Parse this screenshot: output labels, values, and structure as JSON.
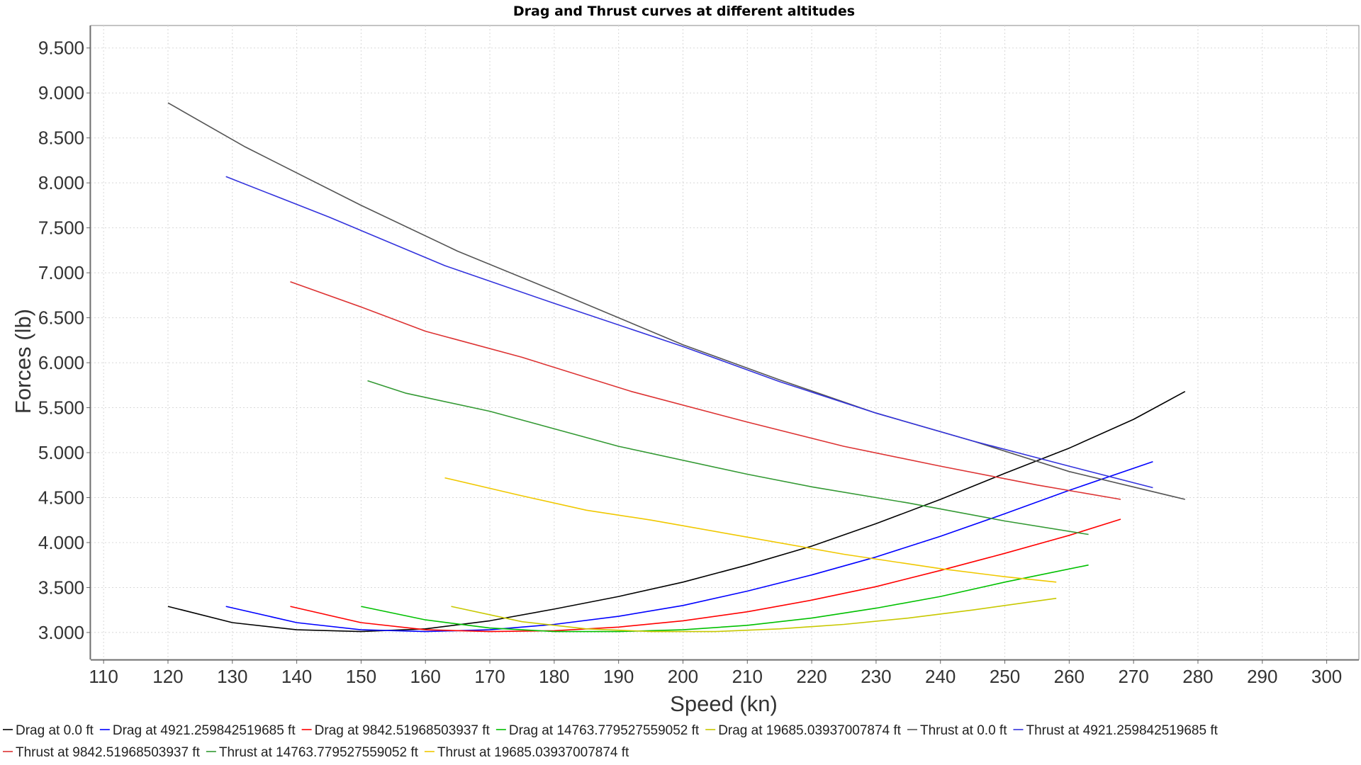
{
  "chart_data": {
    "type": "line",
    "title": "Drag and Thrust curves at different altitudes",
    "xlabel": "Speed (kn)",
    "ylabel": "Forces (lb)",
    "xlim": [
      108,
      305
    ],
    "ylim": [
      2700,
      9750
    ],
    "xticks": [
      110,
      120,
      130,
      140,
      150,
      160,
      170,
      180,
      190,
      200,
      210,
      220,
      230,
      240,
      250,
      260,
      270,
      280,
      290,
      300
    ],
    "xtick_labels": [
      "110",
      "120",
      "130",
      "140",
      "150",
      "160",
      "170",
      "180",
      "190",
      "200",
      "210",
      "220",
      "230",
      "240",
      "250",
      "260",
      "270",
      "280",
      "290",
      "300"
    ],
    "yticks": [
      3000,
      3500,
      4000,
      4500,
      5000,
      5500,
      6000,
      6500,
      7000,
      7500,
      8000,
      8500,
      9000,
      9500
    ],
    "ytick_labels": [
      "3.000",
      "3.500",
      "4.000",
      "4.500",
      "5.000",
      "5.500",
      "6.000",
      "6.500",
      "7.000",
      "7.500",
      "8.000",
      "8.500",
      "9.000",
      "9.500"
    ],
    "grid": true,
    "legend_position": "bottom",
    "series": [
      {
        "name": "Drag at 0.0 ft",
        "color": "#000000",
        "x": [
          120,
          130,
          140,
          150,
          160,
          170,
          180,
          190,
          200,
          210,
          220,
          230,
          240,
          250,
          260,
          270,
          278
        ],
        "y": [
          3290,
          3110,
          3030,
          3010,
          3040,
          3130,
          3260,
          3400,
          3560,
          3750,
          3960,
          4210,
          4480,
          4770,
          5050,
          5370,
          5680
        ]
      },
      {
        "name": "Drag at 4921.259842519685 ft",
        "color": "#0000ff",
        "x": [
          129,
          140,
          150,
          160,
          170,
          180,
          190,
          200,
          210,
          220,
          230,
          240,
          250,
          260,
          273
        ],
        "y": [
          3290,
          3110,
          3030,
          3010,
          3030,
          3090,
          3180,
          3300,
          3460,
          3640,
          3840,
          4070,
          4320,
          4580,
          4900
        ]
      },
      {
        "name": "Drag at 9842.51968503937 ft",
        "color": "#ff0000",
        "x": [
          139,
          150,
          160,
          170,
          180,
          190,
          200,
          210,
          220,
          230,
          240,
          250,
          260,
          268
        ],
        "y": [
          3290,
          3110,
          3030,
          3010,
          3020,
          3060,
          3130,
          3230,
          3360,
          3510,
          3690,
          3880,
          4080,
          4260
        ]
      },
      {
        "name": "Drag at 14763.779527559052 ft",
        "color": "#00c000",
        "x": [
          150,
          160,
          170,
          180,
          190,
          200,
          210,
          220,
          230,
          240,
          250,
          263
        ],
        "y": [
          3290,
          3140,
          3050,
          3010,
          3010,
          3030,
          3080,
          3160,
          3270,
          3400,
          3560,
          3750
        ]
      },
      {
        "name": "Drag at 19685.03937007874 ft",
        "color": "#c8c800",
        "x": [
          164,
          175,
          185,
          195,
          205,
          215,
          225,
          235,
          245,
          258
        ],
        "y": [
          3290,
          3120,
          3040,
          3010,
          3010,
          3040,
          3090,
          3160,
          3250,
          3380
        ]
      },
      {
        "name": "Thrust at 0.0 ft",
        "color": "#555555",
        "x": [
          120,
          132,
          150,
          165,
          180,
          200,
          215,
          230,
          245,
          260,
          278
        ],
        "y": [
          8890,
          8400,
          7750,
          7240,
          6800,
          6200,
          5810,
          5440,
          5130,
          4790,
          4480
        ]
      },
      {
        "name": "Thrust at 4921.259842519685 ft",
        "color": "#3333dd",
        "x": [
          129,
          145,
          163,
          180,
          200,
          215,
          230,
          245,
          260,
          273
        ],
        "y": [
          8070,
          7620,
          7080,
          6660,
          6180,
          5790,
          5440,
          5130,
          4850,
          4610
        ]
      },
      {
        "name": "Thrust at 9842.51968503937 ft",
        "color": "#dd3333",
        "x": [
          139,
          150,
          160,
          175,
          192,
          210,
          225,
          240,
          255,
          268
        ],
        "y": [
          6900,
          6620,
          6350,
          6060,
          5680,
          5340,
          5070,
          4850,
          4640,
          4480
        ]
      },
      {
        "name": "Thrust at 14763.779527559052 ft",
        "color": "#339933",
        "x": [
          151,
          157,
          170,
          190,
          210,
          220,
          235,
          250,
          263
        ],
        "y": [
          5800,
          5660,
          5460,
          5070,
          4760,
          4620,
          4440,
          4240,
          4090
        ]
      },
      {
        "name": "Thrust at 19685.03937007874 ft",
        "color": "#f0c800",
        "x": [
          163,
          175,
          185,
          195,
          210,
          225,
          240,
          250,
          258
        ],
        "y": [
          4720,
          4520,
          4360,
          4250,
          4060,
          3870,
          3710,
          3620,
          3560
        ]
      }
    ]
  }
}
